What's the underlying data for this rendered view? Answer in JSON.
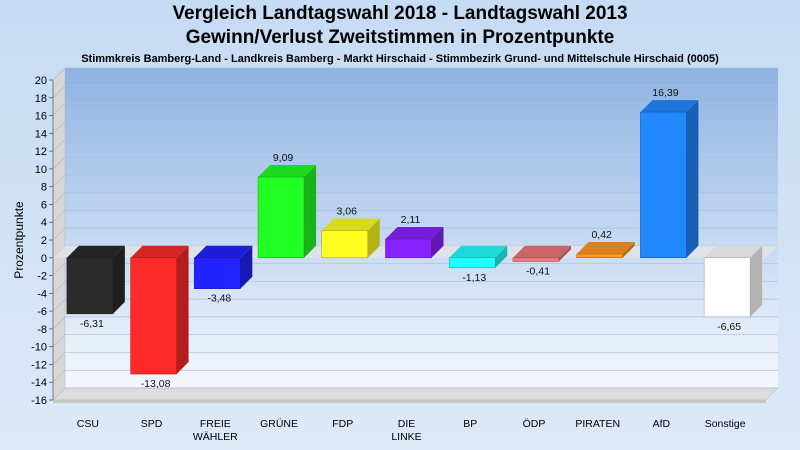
{
  "title": "Vergleich Landtagswahl 2018 - Landtagswahl 2013",
  "subtitle": "Gewinn/Verlust Zweitstimmen in Prozentpunkte",
  "subsubtitle": "Stimmkreis Bamberg-Land - Landkreis Bamberg - Markt Hirschaid - Stimmbezirk Grund- und Mittelschule Hirschaid (0005)",
  "chart_data": {
    "type": "bar",
    "title": "Vergleich Landtagswahl 2018 - Landtagswahl 2013",
    "ylabel": "Prozentpunkte",
    "xlabel": "",
    "ylim": [
      -16,
      20
    ],
    "yticks": [
      20,
      18,
      16,
      14,
      12,
      10,
      8,
      6,
      4,
      2,
      0,
      -2,
      -4,
      -6,
      -8,
      -10,
      -12,
      -14,
      -16
    ],
    "grid": true,
    "categories": [
      {
        "line1": "CSU",
        "line2": ""
      },
      {
        "line1": "SPD",
        "line2": ""
      },
      {
        "line1": "FREIE",
        "line2": "WÄHLER"
      },
      {
        "line1": "GRÜNE",
        "line2": ""
      },
      {
        "line1": "FDP",
        "line2": ""
      },
      {
        "line1": "DIE",
        "line2": "LINKE"
      },
      {
        "line1": "BP",
        "line2": ""
      },
      {
        "line1": "ÖDP",
        "line2": ""
      },
      {
        "line1": "PIRATEN",
        "line2": ""
      },
      {
        "line1": "AfD",
        "line2": ""
      },
      {
        "line1": "Sonstige",
        "line2": ""
      }
    ],
    "values": [
      -6.31,
      -13.08,
      -3.48,
      9.09,
      3.06,
      2.11,
      -1.13,
      -0.41,
      0.42,
      16.39,
      -6.65
    ],
    "labels": [
      "-6,31",
      "-13,08",
      "-3,48",
      "9,09",
      "3,06",
      "2,11",
      "-1,13",
      "-0,41",
      "0,42",
      "16,39",
      "-6,65"
    ],
    "colors": [
      "#2b2b2b",
      "#ff2a2a",
      "#2222ff",
      "#22ff22",
      "#ffff22",
      "#8a22ff",
      "#22ffff",
      "#ee7777",
      "#ff9922",
      "#2288ff",
      "#ffffff"
    ]
  }
}
